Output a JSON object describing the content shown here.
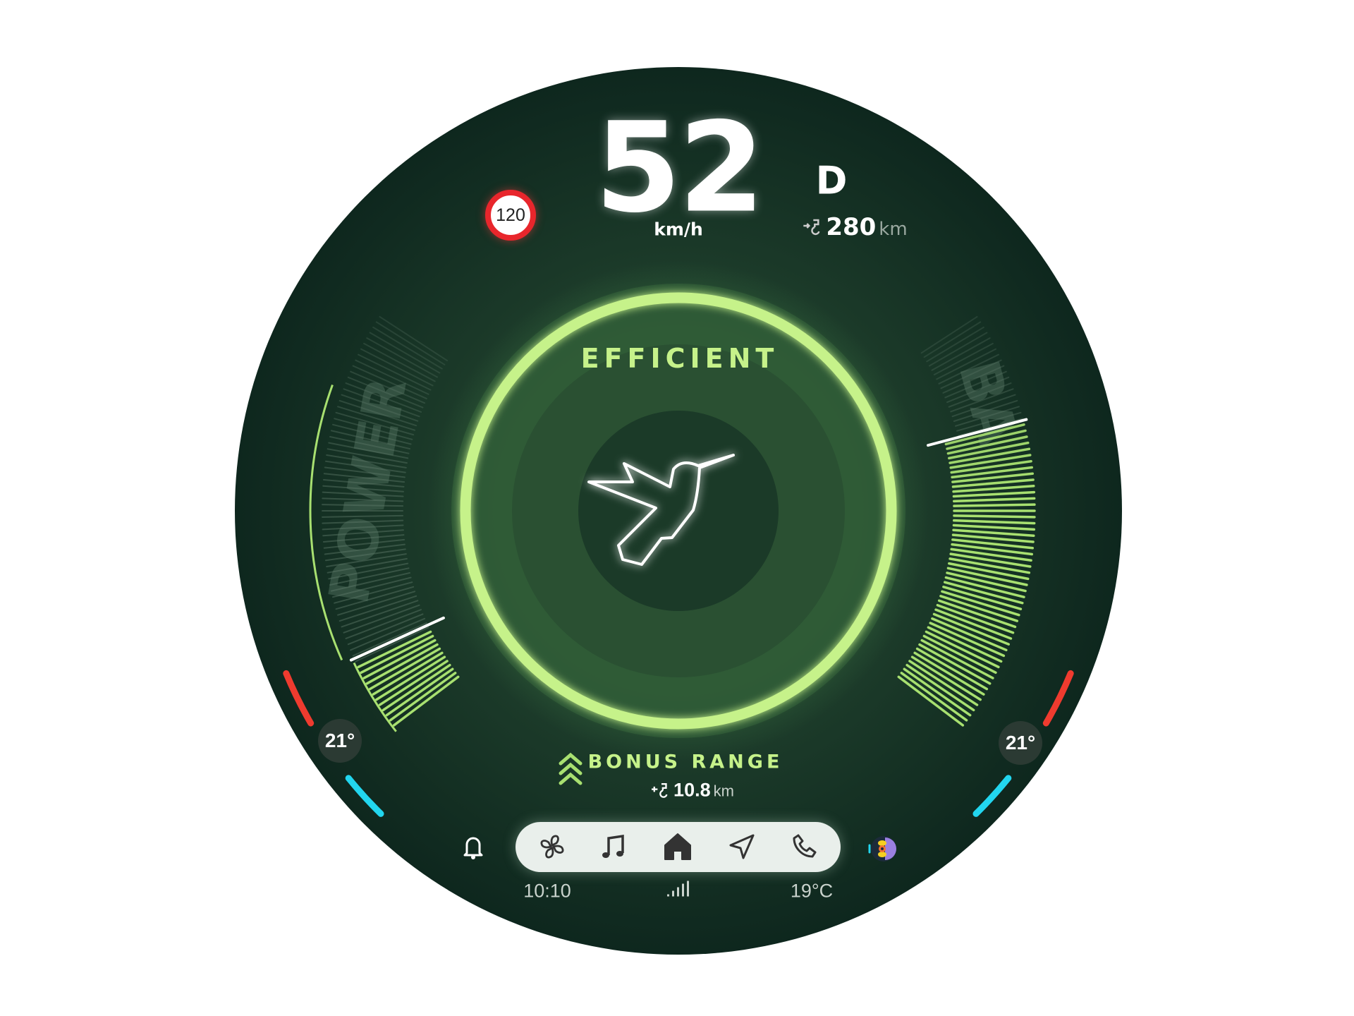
{
  "speed": {
    "value": "52",
    "unit": "km/h"
  },
  "speed_limit": "120",
  "gear": "D",
  "range": {
    "value": "280",
    "unit": "km",
    "icon": "ev-plug-icon"
  },
  "mode": {
    "label": "EFFICIENT",
    "icon": "hummingbird-icon"
  },
  "gauges": {
    "power": {
      "label": "POWER",
      "level": 0.17
    },
    "battery": {
      "label": "BA",
      "level": 0.73
    }
  },
  "climate": {
    "left_temp": "21°",
    "right_temp": "21°"
  },
  "bonus_range": {
    "label": "BONUS RANGE",
    "value": "10.8",
    "unit": "km",
    "icon": "triple-chevron-up-icon"
  },
  "nav": {
    "items": [
      {
        "name": "climate",
        "icon": "fan-icon"
      },
      {
        "name": "media",
        "icon": "music-note-icon"
      },
      {
        "name": "home",
        "icon": "home-icon",
        "active": true
      },
      {
        "name": "navigation",
        "icon": "navigation-arrow-icon"
      },
      {
        "name": "phone",
        "icon": "phone-icon"
      }
    ],
    "left_icon": "bell-icon",
    "right_icon": "assistant-avatar-icon"
  },
  "status_bar": {
    "time": "10:10",
    "signal_icon": "signal-bars-icon",
    "outside_temp": "19°C"
  },
  "colors": {
    "accent_green": "#c6f28a",
    "bar_green": "#a8e070",
    "background_dark": "#0f2a20",
    "hot": "#ef3b2f",
    "cold": "#22d6ef",
    "speed_limit_red": "#e8262c"
  }
}
